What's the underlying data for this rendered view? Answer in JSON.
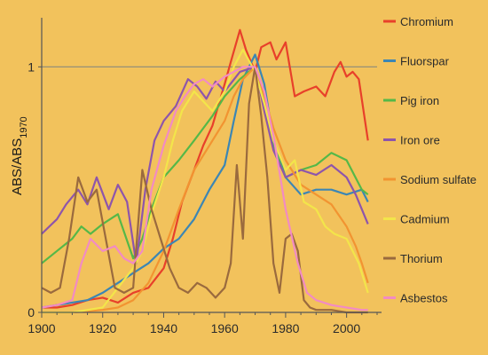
{
  "chart_data": {
    "type": "line",
    "ylabel_main": "ABS/ABS",
    "ylabel_sub": "1970",
    "xlim": [
      1900,
      2010
    ],
    "ylim": [
      0,
      1.2
    ],
    "x_ticks": [
      1900,
      1920,
      1940,
      1960,
      1980,
      2000
    ],
    "y_ticks": [
      0,
      1
    ],
    "reference_line_y": 1,
    "legend_placement": "right",
    "grid": false,
    "series": [
      {
        "name": "Chromium",
        "color": "#E8402A",
        "x": [
          1900,
          1905,
          1910,
          1915,
          1920,
          1925,
          1930,
          1935,
          1940,
          1943,
          1946,
          1950,
          1953,
          1956,
          1960,
          1962,
          1965,
          1967,
          1970,
          1972,
          1975,
          1977,
          1980,
          1983,
          1986,
          1990,
          1993,
          1996,
          1998,
          2000,
          2002,
          2004,
          2007
        ],
        "y": [
          0.02,
          0.02,
          0.03,
          0.05,
          0.06,
          0.04,
          0.08,
          0.1,
          0.18,
          0.3,
          0.45,
          0.58,
          0.68,
          0.76,
          0.93,
          1.02,
          1.15,
          1.07,
          0.98,
          1.08,
          1.1,
          1.03,
          1.1,
          0.88,
          0.9,
          0.92,
          0.88,
          0.98,
          1.02,
          0.96,
          0.98,
          0.95,
          0.7
        ]
      },
      {
        "name": "Fluorspar",
        "color": "#3C86B4",
        "x": [
          1900,
          1905,
          1910,
          1915,
          1920,
          1925,
          1930,
          1935,
          1940,
          1945,
          1950,
          1955,
          1960,
          1963,
          1966,
          1970,
          1973,
          1976,
          1980,
          1985,
          1990,
          1995,
          2000,
          2005,
          2007
        ],
        "y": [
          0.02,
          0.03,
          0.04,
          0.05,
          0.08,
          0.12,
          0.16,
          0.2,
          0.26,
          0.3,
          0.38,
          0.5,
          0.6,
          0.78,
          0.95,
          1.05,
          0.93,
          0.7,
          0.55,
          0.48,
          0.5,
          0.5,
          0.48,
          0.5,
          0.45
        ]
      },
      {
        "name": "Pig iron",
        "color": "#55B848",
        "x": [
          1900,
          1905,
          1910,
          1913,
          1916,
          1920,
          1925,
          1930,
          1933,
          1936,
          1940,
          1945,
          1950,
          1953,
          1956,
          1960,
          1965,
          1970,
          1973,
          1976,
          1980,
          1985,
          1990,
          1995,
          2000,
          2005,
          2007
        ],
        "y": [
          0.2,
          0.25,
          0.3,
          0.35,
          0.32,
          0.36,
          0.4,
          0.22,
          0.3,
          0.42,
          0.55,
          0.62,
          0.7,
          0.75,
          0.8,
          0.88,
          0.95,
          1.0,
          0.85,
          0.68,
          0.55,
          0.58,
          0.6,
          0.65,
          0.62,
          0.5,
          0.48
        ]
      },
      {
        "name": "Iron ore",
        "color": "#8E55AB",
        "x": [
          1900,
          1905,
          1908,
          1912,
          1915,
          1918,
          1922,
          1925,
          1928,
          1931,
          1934,
          1937,
          1940,
          1944,
          1948,
          1951,
          1954,
          1957,
          1960,
          1965,
          1970,
          1973,
          1976,
          1980,
          1985,
          1990,
          1995,
          2000,
          2003,
          2007
        ],
        "y": [
          0.32,
          0.38,
          0.44,
          0.5,
          0.44,
          0.55,
          0.42,
          0.52,
          0.45,
          0.2,
          0.5,
          0.7,
          0.78,
          0.84,
          0.95,
          0.92,
          0.87,
          0.94,
          0.9,
          0.98,
          1.0,
          0.82,
          0.66,
          0.55,
          0.58,
          0.56,
          0.6,
          0.55,
          0.48,
          0.36
        ]
      },
      {
        "name": "Sodium sulfate",
        "color": "#F29431",
        "x": [
          1900,
          1910,
          1920,
          1925,
          1930,
          1935,
          1940,
          1945,
          1950,
          1955,
          1960,
          1963,
          1966,
          1970,
          1973,
          1976,
          1980,
          1985,
          1990,
          1995,
          2000,
          2003,
          2005,
          2007
        ],
        "y": [
          0.0,
          0.0,
          0.01,
          0.02,
          0.05,
          0.12,
          0.25,
          0.42,
          0.58,
          0.68,
          0.78,
          0.88,
          0.95,
          1.0,
          0.88,
          0.75,
          0.62,
          0.52,
          0.48,
          0.44,
          0.35,
          0.27,
          0.2,
          0.12
        ]
      },
      {
        "name": "Cadmium",
        "color": "#F3E54A",
        "x": [
          1900,
          1910,
          1920,
          1925,
          1930,
          1933,
          1936,
          1940,
          1943,
          1946,
          1950,
          1953,
          1956,
          1960,
          1963,
          1966,
          1970,
          1973,
          1976,
          1980,
          1983,
          1986,
          1990,
          1993,
          1996,
          2000,
          2004,
          2007
        ],
        "y": [
          0.0,
          0.0,
          0.02,
          0.1,
          0.18,
          0.25,
          0.4,
          0.55,
          0.7,
          0.82,
          0.9,
          0.86,
          0.82,
          0.9,
          1.0,
          1.07,
          0.98,
          0.85,
          0.7,
          0.58,
          0.62,
          0.45,
          0.42,
          0.35,
          0.32,
          0.3,
          0.2,
          0.08
        ]
      },
      {
        "name": "Thorium",
        "color": "#9A6A3E",
        "x": [
          1900,
          1903,
          1906,
          1909,
          1912,
          1915,
          1918,
          1921,
          1924,
          1927,
          1930,
          1933,
          1936,
          1939,
          1942,
          1945,
          1948,
          1951,
          1954,
          1957,
          1960,
          1962,
          1964,
          1966,
          1968,
          1970,
          1972,
          1974,
          1976,
          1978,
          1980,
          1982,
          1984,
          1986,
          1988,
          1990,
          1995,
          2000,
          2005,
          2007
        ],
        "y": [
          0.1,
          0.08,
          0.1,
          0.3,
          0.55,
          0.45,
          0.5,
          0.3,
          0.1,
          0.08,
          0.1,
          0.58,
          0.42,
          0.3,
          0.18,
          0.1,
          0.08,
          0.12,
          0.1,
          0.06,
          0.1,
          0.2,
          0.6,
          0.3,
          0.85,
          1.0,
          0.8,
          0.55,
          0.2,
          0.08,
          0.3,
          0.32,
          0.25,
          0.05,
          0.02,
          0.01,
          0.01,
          0.0,
          0.0,
          0.0
        ]
      },
      {
        "name": "Asbestos",
        "color": "#F28BC3",
        "x": [
          1900,
          1905,
          1910,
          1913,
          1916,
          1920,
          1924,
          1927,
          1930,
          1933,
          1936,
          1940,
          1944,
          1947,
          1950,
          1953,
          1956,
          1960,
          1963,
          1966,
          1970,
          1973,
          1976,
          1980,
          1984,
          1987,
          1990,
          1995,
          2000,
          2005,
          2007
        ],
        "y": [
          0.02,
          0.03,
          0.05,
          0.2,
          0.3,
          0.25,
          0.27,
          0.22,
          0.2,
          0.25,
          0.5,
          0.68,
          0.82,
          0.88,
          0.93,
          0.95,
          0.92,
          0.96,
          0.98,
          1.0,
          1.0,
          0.9,
          0.72,
          0.42,
          0.2,
          0.08,
          0.05,
          0.03,
          0.02,
          0.01,
          0.01
        ]
      }
    ]
  }
}
